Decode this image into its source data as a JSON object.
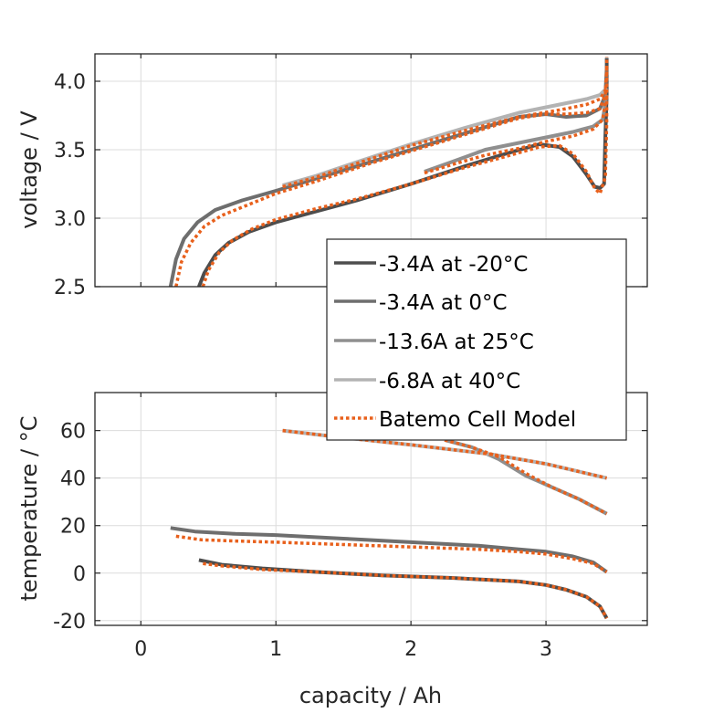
{
  "chart_data": [
    {
      "type": "line",
      "id": "voltage",
      "title": "",
      "xlabel": "",
      "ylabel": "voltage / V",
      "xlim": [
        -0.34,
        3.75
      ],
      "ylim": [
        2.5,
        4.2
      ],
      "xticks": [
        0,
        1,
        2,
        3
      ],
      "yticks": [
        2.5,
        3.0,
        3.5,
        4.0
      ],
      "ytick_labels": [
        "2.5",
        "3.0",
        "3.5",
        "4.0"
      ],
      "grid": true,
      "series": [
        {
          "name": "-3.4A at -20°C",
          "kind": "measured",
          "color": "#4d4d4d",
          "x": [
            0.43,
            0.47,
            0.55,
            0.65,
            0.8,
            1.0,
            1.3,
            1.6,
            2.0,
            2.4,
            2.7,
            2.95,
            3.1,
            3.2,
            3.3,
            3.36,
            3.4,
            3.43,
            3.44,
            3.45,
            3.45
          ],
          "y": [
            2.5,
            2.6,
            2.73,
            2.82,
            2.9,
            2.97,
            3.05,
            3.13,
            3.25,
            3.38,
            3.47,
            3.54,
            3.52,
            3.45,
            3.32,
            3.23,
            3.22,
            3.25,
            3.6,
            3.9,
            4.17
          ]
        },
        {
          "name": "-3.4A at 0°C",
          "kind": "measured",
          "color": "#6e6e6e",
          "x": [
            0.22,
            0.26,
            0.32,
            0.42,
            0.55,
            0.75,
            1.0,
            1.3,
            1.7,
            2.1,
            2.5,
            2.8,
            3.0,
            3.15,
            3.3,
            3.4,
            3.44,
            3.45
          ],
          "y": [
            2.5,
            2.7,
            2.85,
            2.97,
            3.06,
            3.13,
            3.2,
            3.29,
            3.41,
            3.53,
            3.65,
            3.74,
            3.76,
            3.74,
            3.75,
            3.8,
            3.9,
            4.1
          ]
        },
        {
          "name": "-13.6A at 25°C",
          "kind": "measured",
          "color": "#8f8f8f",
          "x": [
            2.1,
            2.3,
            2.55,
            2.8,
            3.0,
            3.2,
            3.35,
            3.42,
            3.45
          ],
          "y": [
            3.34,
            3.41,
            3.5,
            3.55,
            3.59,
            3.63,
            3.67,
            3.72,
            3.9
          ]
        },
        {
          "name": "-6.8A at 40°C",
          "kind": "measured",
          "color": "#b3b3b3",
          "x": [
            1.05,
            1.3,
            1.6,
            2.0,
            2.4,
            2.8,
            3.1,
            3.3,
            3.4,
            3.45
          ],
          "y": [
            3.24,
            3.31,
            3.41,
            3.54,
            3.66,
            3.77,
            3.83,
            3.87,
            3.9,
            3.95
          ]
        },
        {
          "name": "Batemo Cell Model",
          "kind": "model",
          "color": "#e8601c",
          "x": [
            0.46,
            0.5,
            0.58,
            0.68,
            0.82,
            1.0,
            1.3,
            1.6,
            2.0,
            2.4,
            2.7,
            2.95,
            3.1,
            3.2,
            3.3,
            3.36,
            3.4,
            3.44,
            3.45,
            3.45
          ],
          "y": [
            2.5,
            2.62,
            2.75,
            2.84,
            2.92,
            2.99,
            3.07,
            3.14,
            3.25,
            3.37,
            3.45,
            3.52,
            3.53,
            3.47,
            3.34,
            3.22,
            3.18,
            3.3,
            3.7,
            4.18
          ]
        },
        {
          "name": "Batemo Cell Model",
          "kind": "model",
          "color": "#e8601c",
          "x": [
            0.26,
            0.3,
            0.37,
            0.47,
            0.6,
            0.8,
            1.0,
            1.3,
            1.7,
            2.1,
            2.5,
            2.8,
            3.0,
            3.15,
            3.3,
            3.4,
            3.44,
            3.45
          ],
          "y": [
            2.5,
            2.68,
            2.82,
            2.94,
            3.02,
            3.1,
            3.18,
            3.27,
            3.4,
            3.52,
            3.64,
            3.73,
            3.76,
            3.76,
            3.77,
            3.8,
            3.9,
            4.1
          ]
        },
        {
          "name": "Batemo Cell Model",
          "kind": "model",
          "color": "#e8601c",
          "x": [
            2.1,
            2.3,
            2.55,
            2.8,
            3.0,
            3.2,
            3.35,
            3.42,
            3.45
          ],
          "y": [
            3.33,
            3.39,
            3.46,
            3.51,
            3.56,
            3.6,
            3.65,
            3.72,
            3.9
          ]
        },
        {
          "name": "Batemo Cell Model",
          "kind": "model",
          "color": "#e8601c",
          "x": [
            1.05,
            1.3,
            1.6,
            2.0,
            2.4,
            2.8,
            3.1,
            3.3,
            3.4,
            3.45
          ],
          "y": [
            3.23,
            3.3,
            3.4,
            3.53,
            3.64,
            3.74,
            3.79,
            3.83,
            3.87,
            3.95
          ]
        }
      ]
    },
    {
      "type": "line",
      "id": "temperature",
      "title": "",
      "xlabel": "capacity / Ah",
      "ylabel": "temperature / °C",
      "xlim": [
        -0.34,
        3.75
      ],
      "ylim": [
        -22,
        76
      ],
      "xticks": [
        0,
        1,
        2,
        3
      ],
      "xtick_labels": [
        "0",
        "1",
        "2",
        "3"
      ],
      "yticks": [
        -20,
        0,
        20,
        40,
        60
      ],
      "ytick_labels": [
        "-20",
        "0",
        "20",
        "40",
        "60"
      ],
      "grid": true,
      "series": [
        {
          "name": "-3.4A at -20°C",
          "kind": "measured",
          "color": "#4d4d4d",
          "x": [
            0.43,
            0.6,
            0.9,
            1.3,
            1.8,
            2.3,
            2.8,
            3.0,
            3.15,
            3.3,
            3.4,
            3.45
          ],
          "y": [
            5.5,
            3.5,
            2,
            0.5,
            -1,
            -2,
            -3.5,
            -5,
            -7,
            -10,
            -14,
            -19
          ]
        },
        {
          "name": "-3.4A at 0°C",
          "kind": "measured",
          "color": "#6e6e6e",
          "x": [
            0.22,
            0.4,
            0.7,
            1.0,
            1.5,
            2.0,
            2.5,
            2.8,
            3.0,
            3.2,
            3.35,
            3.45
          ],
          "y": [
            19,
            17.5,
            16.5,
            16,
            14.5,
            13,
            11.5,
            10,
            9,
            7,
            4.5,
            0.5
          ]
        },
        {
          "name": "-13.6A at 25°C",
          "kind": "measured",
          "color": "#8f8f8f",
          "x": [
            2.25,
            2.45,
            2.65,
            2.85,
            3.05,
            3.25,
            3.45
          ],
          "y": [
            56,
            53,
            48,
            41,
            36,
            31,
            25
          ]
        },
        {
          "name": "-6.8A at 40°C",
          "kind": "measured",
          "color": "#b3b3b3",
          "x": [
            1.05,
            1.5,
            2.0,
            2.6,
            3.0,
            3.45
          ],
          "y": [
            60,
            57,
            54,
            50,
            46,
            40
          ]
        },
        {
          "name": "Batemo Cell Model",
          "kind": "model",
          "color": "#e8601c",
          "x": [
            0.46,
            0.6,
            0.9,
            1.3,
            1.8,
            2.3,
            2.8,
            3.0,
            3.15,
            3.3,
            3.4,
            3.45
          ],
          "y": [
            4,
            3,
            1.5,
            0.5,
            -1,
            -2,
            -3.5,
            -5,
            -7,
            -10,
            -14,
            -19
          ]
        },
        {
          "name": "Batemo Cell Model",
          "kind": "model",
          "color": "#e8601c",
          "x": [
            0.26,
            0.45,
            0.7,
            1.0,
            1.5,
            2.0,
            2.5,
            2.8,
            3.0,
            3.2,
            3.35,
            3.45
          ],
          "y": [
            15.5,
            14,
            13.5,
            13,
            12,
            11,
            10,
            9,
            8,
            6,
            4,
            0.5
          ]
        },
        {
          "name": "Batemo Cell Model",
          "kind": "model",
          "color": "#e8601c",
          "x": [
            2.25,
            2.45,
            2.65,
            2.85,
            3.05,
            3.25,
            3.45
          ],
          "y": [
            56,
            53,
            49,
            42,
            36,
            31,
            25
          ]
        },
        {
          "name": "Batemo Cell Model",
          "kind": "model",
          "color": "#e8601c",
          "x": [
            1.05,
            1.5,
            2.0,
            2.6,
            3.0,
            3.45
          ],
          "y": [
            60,
            57,
            54,
            50,
            46,
            40
          ]
        }
      ]
    }
  ],
  "legend": {
    "placement": "center-right",
    "entries": [
      {
        "label": "-3.4A at -20°C",
        "style": "solid",
        "color": "#4d4d4d"
      },
      {
        "label": "-3.4A at 0°C",
        "style": "solid",
        "color": "#6e6e6e"
      },
      {
        "label": "-13.6A at 25°C",
        "style": "solid",
        "color": "#8f8f8f"
      },
      {
        "label": "-6.8A at 40°C",
        "style": "solid",
        "color": "#b3b3b3"
      },
      {
        "label": "Batemo Cell Model",
        "style": "dotted",
        "color": "#e8601c"
      }
    ]
  }
}
